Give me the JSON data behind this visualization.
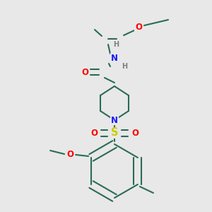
{
  "background_color": "#e8e8e8",
  "bond_color": "#2a6b58",
  "atom_colors": {
    "O": "#ff0000",
    "N": "#1a1aff",
    "S": "#cccc00",
    "H": "#808080",
    "C": "#2a6b58"
  },
  "lw": 1.5,
  "fs": 8.5,
  "fs_small": 7.0
}
